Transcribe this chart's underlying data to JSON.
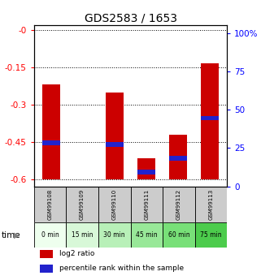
{
  "title": "GDS2583 / 1653",
  "samples": [
    "GSM99108",
    "GSM99109",
    "GSM99110",
    "GSM99111",
    "GSM99112",
    "GSM99113"
  ],
  "time_labels": [
    "0 min",
    "15 min",
    "30 min",
    "45 min",
    "60 min",
    "75 min"
  ],
  "log2_values": [
    -0.22,
    -0.6,
    -0.25,
    -0.515,
    -0.42,
    -0.135
  ],
  "pct_vals": [
    27,
    0,
    26,
    8,
    17,
    43
  ],
  "pct_bar_height": 3,
  "ylim_left": [
    -0.63,
    0.02
  ],
  "ylim_right": [
    0,
    105
  ],
  "yticks_left": [
    0.0,
    -0.15,
    -0.3,
    -0.45,
    -0.6
  ],
  "ytick_left_labels": [
    "-0",
    "-0.15",
    "-0.3",
    "-0.45",
    "-0.6"
  ],
  "yticks_right": [
    0,
    25,
    50,
    75,
    100
  ],
  "ytick_right_labels": [
    "0",
    "25",
    "50",
    "75",
    "100%"
  ],
  "bar_color_red": "#cc0000",
  "bar_color_blue": "#2222cc",
  "time_colors": [
    "#eeffee",
    "#d8f8d8",
    "#b8f0b8",
    "#98e898",
    "#78e078",
    "#4ccc4c"
  ],
  "sample_bg": "#cccccc",
  "bar_width": 0.55,
  "bar_bottom": -0.6
}
